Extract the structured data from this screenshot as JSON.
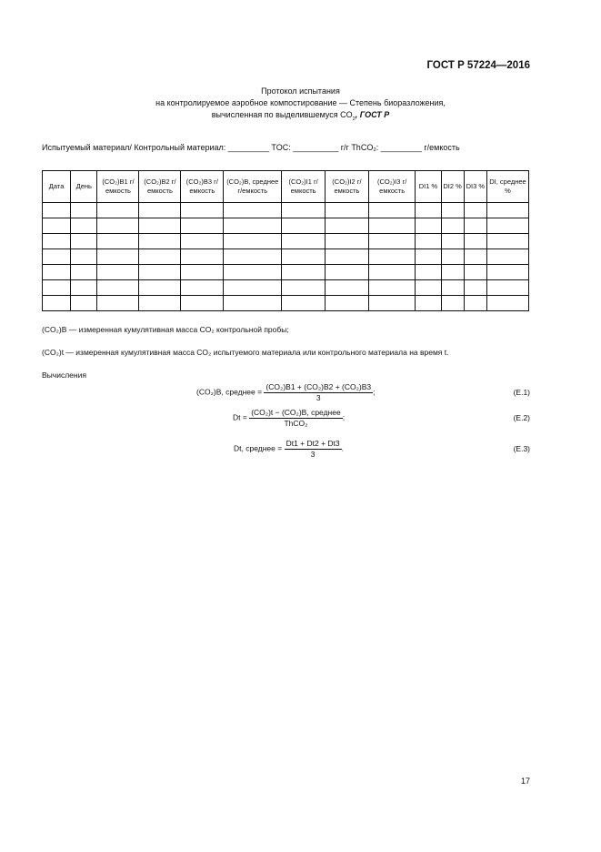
{
  "header": {
    "standard": "ГОСТ Р 57224—2016"
  },
  "title": {
    "line1": "Протокол испытания",
    "line2": "на контролируемое аэробное компостирование — Степень биоразложения,",
    "line3": "вычисленная по выделившемуся CO",
    "line3_sub": "2",
    "line3_tail": ", ГОСТ Р"
  },
  "material_line": "Испытуемый материал/ Контрольный материал: _________ TOC: __________ г/г ThCO₂: _________ г/емкость",
  "table": {
    "columns": [
      "Дата",
      "День",
      "(CO₂)B1 г/емкость",
      "(CO₂)B2 г/емкость",
      "(CO₂)B3 г/емкость",
      "(CO₂)B, среднее г/емкость",
      "(CO₂)I1 г/емкость",
      "(CO₂)I2 г/емкость",
      "(CO₂)I3 г/емкость",
      "DI1 %",
      "DI2 %",
      "DI3 %",
      "DI, среднее %"
    ],
    "empty_rows": 7
  },
  "notes": {
    "n1": "(CO₂)B — измеренная кумулятивная масса CO₂ контрольной пробы;",
    "n2": "(CO₂)t — измеренная кумулятивная масса CO₂ испытуемого материала или контрольного материала на время t."
  },
  "calc_label": "Вычисления",
  "equations": [
    {
      "lhs": "(CO₂)B, среднее =",
      "num": "(CO₂)B1 + (CO₂)B2 + (CO₂)B3",
      "den": "3",
      "tail": ";",
      "label": "(E.1)"
    },
    {
      "lhs": "Dt =",
      "num": "(CO₂)t − (CO₂)B, среднее",
      "den": "ThCO₂",
      "tail": ";",
      "label": "(E.2)"
    },
    {
      "lhs": "Dt, среднее =",
      "num": "Dt1 + Dt2 + Dt3",
      "den": "3",
      "tail": ".",
      "label": "(E.3)"
    }
  ],
  "page_number": "17"
}
